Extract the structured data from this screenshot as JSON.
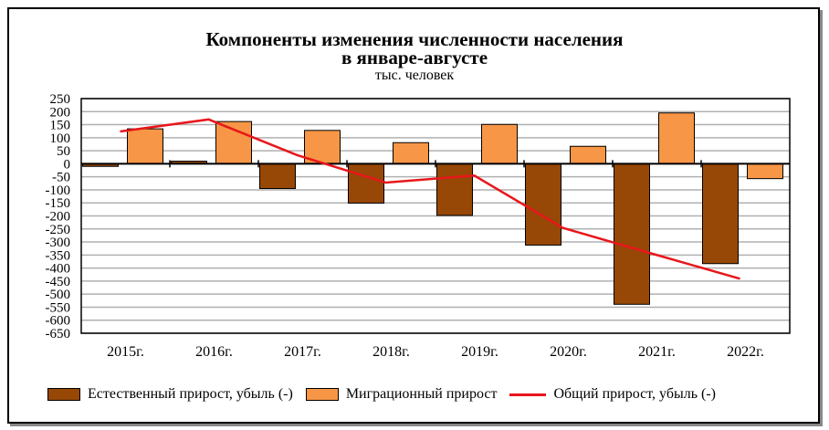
{
  "chart_data": {
    "type": "bar",
    "title": "Компоненты изменения численности населения",
    "title_line2": "в январе-августе",
    "subtitle": "тыс. человек",
    "xlabel": "",
    "ylabel": "",
    "ylim": [
      -650,
      250
    ],
    "ytick_step": 50,
    "grid": true,
    "legend_position": "bottom",
    "categories": [
      "2015г.",
      "2016г.",
      "2017г.",
      "2018г.",
      "2019г.",
      "2020г.",
      "2021г.",
      "2022г."
    ],
    "series": [
      {
        "name": "Естественный прирост, убыль (-)",
        "type": "bar",
        "color": "#974806",
        "values": [
          -10,
          10,
          -95,
          -151,
          -198,
          -312,
          -539,
          -383
        ]
      },
      {
        "name": "Миграционный прирост",
        "type": "bar",
        "color": "#F79646",
        "values": [
          134,
          162,
          128,
          81,
          151,
          67,
          195,
          -57
        ]
      },
      {
        "name": "Общий прирост, убыль (-)",
        "type": "line",
        "color": "#E8161B",
        "values": [
          124,
          170,
          33,
          -72,
          -45,
          -246,
          -344,
          -441
        ]
      }
    ]
  }
}
